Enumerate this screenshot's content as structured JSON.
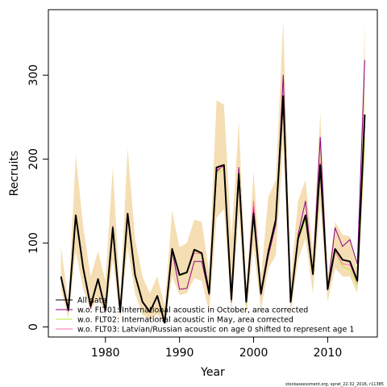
{
  "chart_data": {
    "type": "line",
    "xlabel": "Year",
    "ylabel": "Recruits",
    "xlim": [
      1972.3,
      2016.7
    ],
    "ylim": [
      -12,
      378
    ],
    "x_ticks": [
      1980,
      1990,
      2000,
      2010
    ],
    "y_ticks": [
      0,
      100,
      200,
      300
    ],
    "grid": false,
    "legend_position": "bottom-left",
    "x": [
      1974,
      1975,
      1976,
      1977,
      1978,
      1979,
      1980,
      1981,
      1982,
      1983,
      1984,
      1985,
      1986,
      1987,
      1988,
      1989,
      1990,
      1991,
      1992,
      1993,
      1994,
      1995,
      1996,
      1997,
      1998,
      1999,
      2000,
      2001,
      2002,
      2003,
      2004,
      2005,
      2006,
      2007,
      2008,
      2009,
      2010,
      2011,
      2012,
      2013,
      2014,
      2015
    ],
    "band": {
      "color": "#f5deb3",
      "upper": [
        95,
        30,
        205,
        120,
        60,
        90,
        55,
        190,
        35,
        213,
        105,
        60,
        40,
        60,
        25,
        138,
        95,
        100,
        128,
        125,
        65,
        270,
        265,
        105,
        245,
        40,
        185,
        60,
        155,
        175,
        365,
        55,
        150,
        175,
        90,
        255,
        60,
        125,
        110,
        108,
        70,
        360
      ],
      "lower": [
        45,
        10,
        90,
        45,
        20,
        35,
        15,
        80,
        10,
        95,
        40,
        15,
        8,
        15,
        3,
        60,
        38,
        40,
        58,
        55,
        18,
        130,
        140,
        18,
        135,
        15,
        95,
        20,
        70,
        85,
        220,
        15,
        80,
        105,
        40,
        145,
        30,
        70,
        60,
        60,
        40,
        200
      ]
    },
    "series": [
      {
        "name": "All data",
        "color": "#000000",
        "values": [
          60,
          20,
          133,
          70,
          25,
          57,
          20,
          118,
          18,
          135,
          62,
          30,
          18,
          37,
          5,
          93,
          62,
          65,
          92,
          88,
          40,
          190,
          193,
          33,
          182,
          30,
          135,
          40,
          90,
          128,
          275,
          30,
          105,
          133,
          63,
          193,
          45,
          93,
          80,
          78,
          55,
          253
        ]
      },
      {
        "name": "w.o. FLT01: International acoustic in October, area corrected",
        "color": "#8b008b",
        "values": [
          59,
          19,
          133,
          68,
          22,
          57,
          18,
          120,
          17,
          135,
          61,
          29,
          18,
          36,
          5,
          91,
          45,
          46,
          78,
          78,
          38,
          185,
          193,
          30,
          190,
          28,
          143,
          38,
          85,
          122,
          300,
          29,
          110,
          150,
          62,
          226,
          44,
          118,
          96,
          104,
          75,
          318
        ]
      },
      {
        "name": "w.o. FLT02: International acoustic in May, area corrected",
        "color": "#b3ee3a",
        "values": [
          60,
          20,
          130,
          69,
          24,
          56,
          19,
          117,
          18,
          133,
          61,
          30,
          18,
          37,
          5,
          92,
          61,
          64,
          91,
          87,
          39,
          183,
          188,
          32,
          180,
          26,
          133,
          39,
          89,
          126,
          265,
          30,
          103,
          128,
          62,
          183,
          44,
          90,
          72,
          68,
          50,
          225
        ]
      },
      {
        "name": "w.o. FLT03: Latvian/Russian acoustic on age 0 shifted to represent age 1",
        "color": "#ff69b4",
        "values": [
          60,
          20,
          133,
          70,
          25,
          57,
          20,
          118,
          18,
          134,
          62,
          30,
          18,
          37,
          5,
          93,
          62,
          65,
          88,
          87,
          40,
          188,
          191,
          33,
          182,
          30,
          150,
          40,
          90,
          128,
          270,
          30,
          107,
          132,
          62,
          196,
          45,
          90,
          75,
          74,
          53,
          240
        ]
      }
    ]
  },
  "credit_text": "stockassessment.org, sprat_22-32_2016, r11385"
}
